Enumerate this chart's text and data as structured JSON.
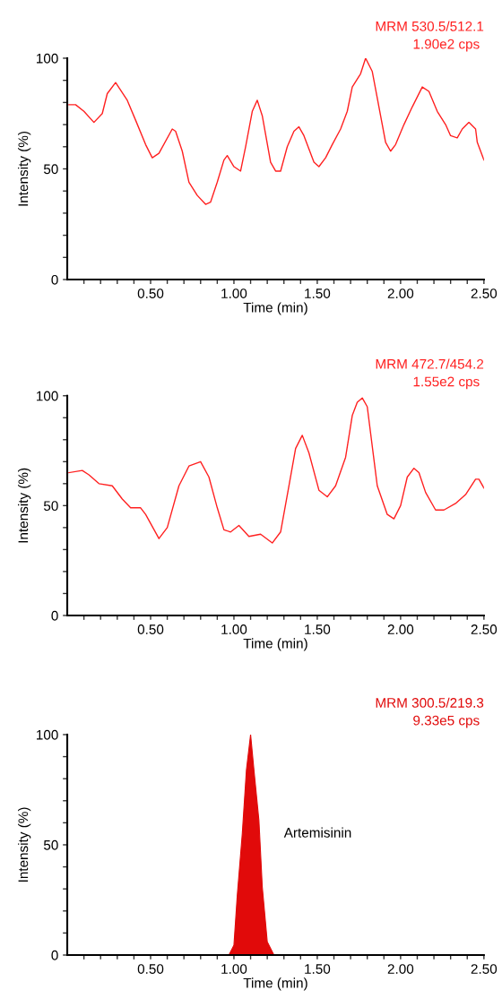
{
  "chart_data": [
    {
      "type": "line",
      "title": "MRM 530.5/512.1",
      "subtitle": "1.90e2 cps",
      "xlabel": "Time (min)",
      "ylabel": "Intensity (%)",
      "x": [
        0.01,
        0.05,
        0.1,
        0.16,
        0.21,
        0.24,
        0.29,
        0.36,
        0.41,
        0.47,
        0.51,
        0.55,
        0.63,
        0.65,
        0.69,
        0.73,
        0.78,
        0.83,
        0.86,
        0.9,
        0.94,
        0.96,
        1.0,
        1.04,
        1.07,
        1.11,
        1.14,
        1.17,
        1.22,
        1.25,
        1.28,
        1.32,
        1.36,
        1.39,
        1.42,
        1.45,
        1.48,
        1.51,
        1.55,
        1.59,
        1.64,
        1.68,
        1.71,
        1.76,
        1.79,
        1.83,
        1.86,
        1.91,
        1.94,
        1.97,
        2.02,
        2.07,
        2.13,
        2.17,
        2.22,
        2.27,
        2.3,
        2.34,
        2.37,
        2.41,
        2.45,
        2.46,
        2.5
      ],
      "series": [
        {
          "color": "#ff2020",
          "values": [
            79,
            79,
            76,
            71,
            75,
            84,
            89,
            81,
            72,
            61,
            55,
            57,
            68,
            67,
            58,
            44,
            38,
            34,
            35,
            44,
            54,
            56,
            51,
            49,
            60,
            76,
            81,
            74,
            53,
            49,
            49,
            60,
            67,
            69,
            65,
            59,
            53,
            51,
            55,
            61,
            68,
            76,
            87,
            93,
            100,
            94,
            82,
            62,
            58,
            61,
            70,
            78,
            87,
            85,
            76,
            70,
            65,
            64,
            68,
            71,
            68,
            62,
            54
          ]
        }
      ],
      "xlim": [
        0,
        2.5
      ],
      "ylim": [
        0,
        100
      ],
      "xticks": [
        {
          "value": 0.1,
          "label": null
        },
        {
          "value": 0.2,
          "label": null
        },
        {
          "value": 0.3,
          "label": null
        },
        {
          "value": 0.4,
          "label": null
        },
        {
          "value": 0.5,
          "label": "0.50"
        },
        {
          "value": 0.6,
          "label": null
        },
        {
          "value": 0.7,
          "label": null
        },
        {
          "value": 0.8,
          "label": null
        },
        {
          "value": 0.9,
          "label": null
        },
        {
          "value": 1.0,
          "label": "1.00"
        },
        {
          "value": 1.1,
          "label": null
        },
        {
          "value": 1.2,
          "label": null
        },
        {
          "value": 1.3,
          "label": null
        },
        {
          "value": 1.4,
          "label": null
        },
        {
          "value": 1.5,
          "label": "1.50"
        },
        {
          "value": 1.6,
          "label": null
        },
        {
          "value": 1.7,
          "label": null
        },
        {
          "value": 1.8,
          "label": null
        },
        {
          "value": 1.9,
          "label": null
        },
        {
          "value": 2.0,
          "label": "2.00"
        },
        {
          "value": 2.1,
          "label": null
        },
        {
          "value": 2.2,
          "label": null
        },
        {
          "value": 2.3,
          "label": null
        },
        {
          "value": 2.4,
          "label": null
        },
        {
          "value": 2.5,
          "label": "2.50"
        }
      ],
      "yticks": [
        0,
        {
          "value": 10,
          "label": null
        },
        {
          "value": 20,
          "label": null
        },
        {
          "value": 30,
          "label": null
        },
        {
          "value": 40,
          "label": null
        },
        50,
        {
          "value": 60,
          "label": null
        },
        {
          "value": 70,
          "label": null
        },
        {
          "value": 80,
          "label": null
        },
        {
          "value": 90,
          "label": null
        },
        100
      ],
      "grid": false
    },
    {
      "type": "line",
      "title": "MRM 472.7/454.2",
      "subtitle": "1.55e2 cps",
      "xlabel": "Time (min)",
      "ylabel": "Intensity (%)",
      "x": [
        0.01,
        0.09,
        0.13,
        0.19,
        0.27,
        0.33,
        0.38,
        0.44,
        0.47,
        0.55,
        0.6,
        0.67,
        0.73,
        0.8,
        0.85,
        0.9,
        0.94,
        0.98,
        1.03,
        1.09,
        1.16,
        1.23,
        1.28,
        1.33,
        1.37,
        1.41,
        1.45,
        1.51,
        1.56,
        1.61,
        1.67,
        1.71,
        1.74,
        1.77,
        1.8,
        1.86,
        1.92,
        1.96,
        2.0,
        2.04,
        2.08,
        2.11,
        2.15,
        2.21,
        2.26,
        2.33,
        2.39,
        2.45,
        2.47,
        2.5
      ],
      "series": [
        {
          "color": "#ff2020",
          "values": [
            65,
            66,
            64,
            60,
            59,
            53,
            49,
            49,
            46,
            35,
            40,
            59,
            68,
            70,
            63,
            49,
            39,
            38,
            41,
            36,
            37,
            33,
            38,
            59,
            76,
            82,
            74,
            57,
            54,
            59,
            72,
            91,
            97,
            99,
            95,
            59,
            46,
            44,
            50,
            63,
            67,
            65,
            56,
            48,
            48,
            51,
            55,
            62,
            62,
            58
          ]
        }
      ],
      "xlim": [
        0,
        2.5
      ],
      "ylim": [
        0,
        100
      ],
      "xticks": [
        {
          "value": 0.1,
          "label": null
        },
        {
          "value": 0.2,
          "label": null
        },
        {
          "value": 0.3,
          "label": null
        },
        {
          "value": 0.4,
          "label": null
        },
        {
          "value": 0.5,
          "label": "0.50"
        },
        {
          "value": 0.6,
          "label": null
        },
        {
          "value": 0.7,
          "label": null
        },
        {
          "value": 0.8,
          "label": null
        },
        {
          "value": 0.9,
          "label": null
        },
        {
          "value": 1.0,
          "label": "1.00"
        },
        {
          "value": 1.1,
          "label": null
        },
        {
          "value": 1.2,
          "label": null
        },
        {
          "value": 1.3,
          "label": null
        },
        {
          "value": 1.4,
          "label": null
        },
        {
          "value": 1.5,
          "label": "1.50"
        },
        {
          "value": 1.6,
          "label": null
        },
        {
          "value": 1.7,
          "label": null
        },
        {
          "value": 1.8,
          "label": null
        },
        {
          "value": 1.9,
          "label": null
        },
        {
          "value": 2.0,
          "label": "2.00"
        },
        {
          "value": 2.1,
          "label": null
        },
        {
          "value": 2.2,
          "label": null
        },
        {
          "value": 2.3,
          "label": null
        },
        {
          "value": 2.4,
          "label": null
        },
        {
          "value": 2.5,
          "label": "2.50"
        }
      ],
      "yticks": [
        0,
        {
          "value": 10,
          "label": null
        },
        {
          "value": 20,
          "label": null
        },
        {
          "value": 30,
          "label": null
        },
        {
          "value": 40,
          "label": null
        },
        50,
        {
          "value": 60,
          "label": null
        },
        {
          "value": 70,
          "label": null
        },
        {
          "value": 80,
          "label": null
        },
        {
          "value": 90,
          "label": null
        },
        100
      ],
      "grid": false
    },
    {
      "type": "area",
      "title": "MRM 300.5/219.3",
      "subtitle": "9.33e5 cps",
      "xlabel": "Time (min)",
      "ylabel": "Intensity (%)",
      "x": [
        0.01,
        0.97,
        1.0,
        1.02,
        1.05,
        1.075,
        1.1,
        1.12,
        1.15,
        1.17,
        1.2,
        1.24,
        2.5
      ],
      "series": [
        {
          "color": "#e10a0a",
          "values": [
            0,
            0,
            4.5,
            27,
            55,
            84,
            100,
            84,
            61,
            31,
            6,
            0,
            0
          ]
        }
      ],
      "annotations": [
        "Artemisinin"
      ],
      "xlim": [
        0,
        2.5
      ],
      "ylim": [
        0,
        100
      ],
      "xticks": [
        {
          "value": 0.1,
          "label": null
        },
        {
          "value": 0.2,
          "label": null
        },
        {
          "value": 0.3,
          "label": null
        },
        {
          "value": 0.4,
          "label": null
        },
        {
          "value": 0.5,
          "label": "0.50"
        },
        {
          "value": 0.6,
          "label": null
        },
        {
          "value": 0.7,
          "label": null
        },
        {
          "value": 0.8,
          "label": null
        },
        {
          "value": 0.9,
          "label": null
        },
        {
          "value": 1.0,
          "label": "1.00"
        },
        {
          "value": 1.1,
          "label": null
        },
        {
          "value": 1.2,
          "label": null
        },
        {
          "value": 1.3,
          "label": null
        },
        {
          "value": 1.4,
          "label": null
        },
        {
          "value": 1.5,
          "label": "1.50"
        },
        {
          "value": 1.6,
          "label": null
        },
        {
          "value": 1.7,
          "label": null
        },
        {
          "value": 1.8,
          "label": null
        },
        {
          "value": 1.9,
          "label": null
        },
        {
          "value": 2.0,
          "label": "2.00"
        },
        {
          "value": 2.1,
          "label": null
        },
        {
          "value": 2.2,
          "label": null
        },
        {
          "value": 2.3,
          "label": null
        },
        {
          "value": 2.4,
          "label": null
        },
        {
          "value": 2.5,
          "label": "2.50"
        }
      ],
      "yticks": [
        0,
        {
          "value": 10,
          "label": null
        },
        {
          "value": 20,
          "label": null
        },
        {
          "value": 30,
          "label": null
        },
        {
          "value": 40,
          "label": null
        },
        50,
        {
          "value": 60,
          "label": null
        },
        {
          "value": 70,
          "label": null
        },
        {
          "value": 80,
          "label": null
        },
        {
          "value": 90,
          "label": null
        },
        100
      ],
      "grid": false
    }
  ]
}
